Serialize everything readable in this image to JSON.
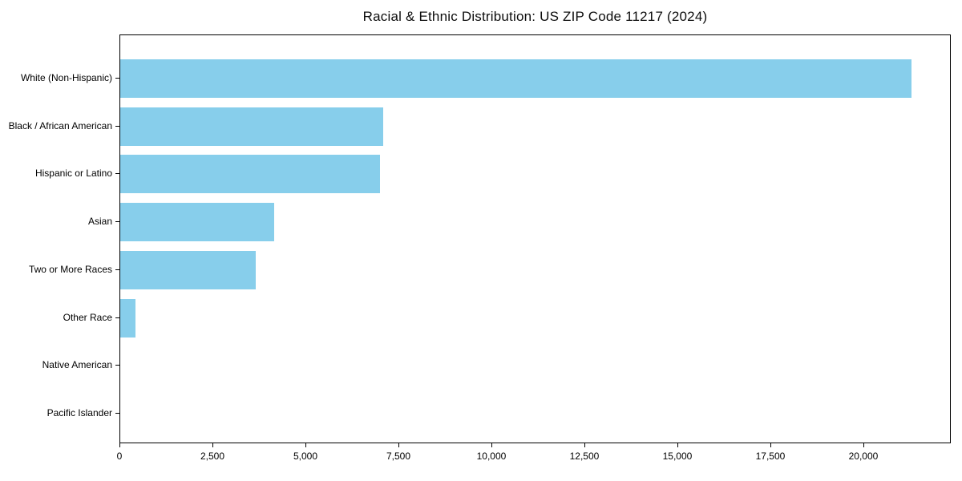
{
  "chart_data": {
    "type": "bar",
    "orientation": "horizontal",
    "title": "Racial & Ethnic Distribution: US ZIP Code 11217 (2024)",
    "categories": [
      "White (Non-Hispanic)",
      "Black / African American",
      "Hispanic or Latino",
      "Asian",
      "Two or More Races",
      "Other Race",
      "Native American",
      "Pacific Islander"
    ],
    "values": [
      21280,
      7075,
      6990,
      4130,
      3635,
      415,
      0,
      0
    ],
    "xlabel": "",
    "ylabel": "",
    "xlim": [
      0,
      22350
    ],
    "xticks": {
      "values": [
        0,
        2500,
        5000,
        7500,
        10000,
        12500,
        15000,
        17500,
        20000
      ],
      "labels": [
        "0",
        "2,500",
        "5,000",
        "7,500",
        "10,000",
        "12,500",
        "15,000",
        "17,500",
        "20,000"
      ]
    },
    "grid": false,
    "legend": "none",
    "colors": {
      "bar": "#87CEEB",
      "spine": "#000000",
      "text": "#000000",
      "background": "#ffffff"
    }
  }
}
